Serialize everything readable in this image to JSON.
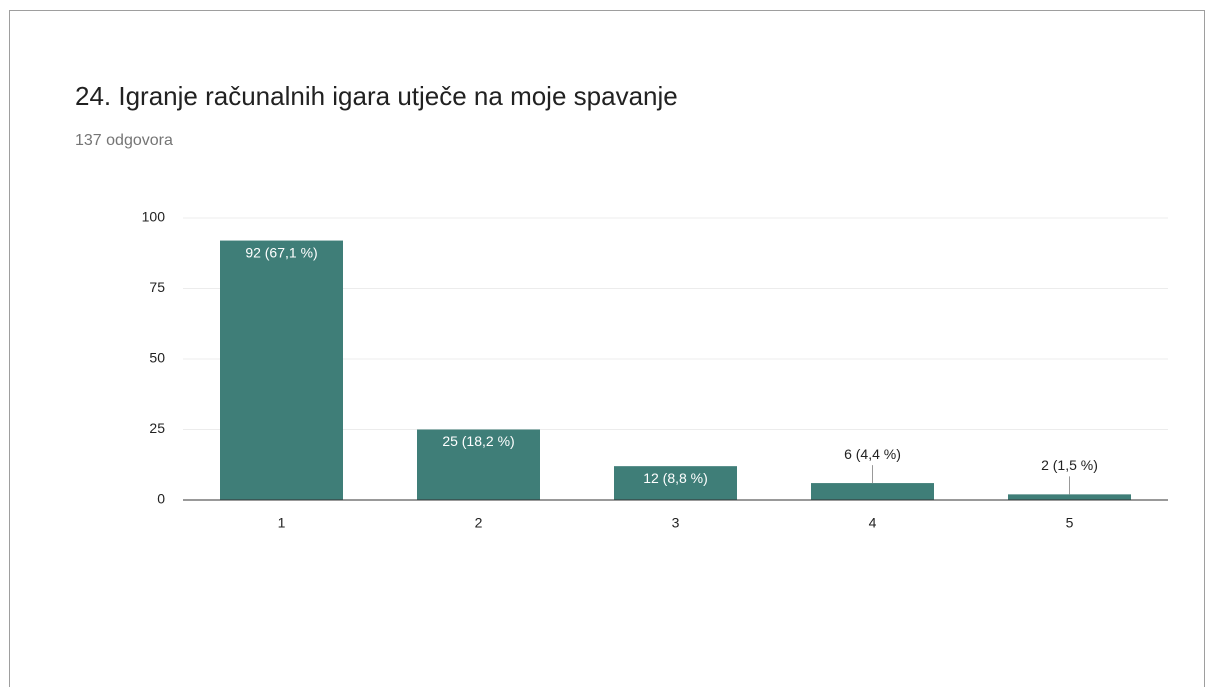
{
  "chart_data": {
    "type": "bar",
    "title": "24. Igranje računalnih igara utječe na moje spavanje",
    "subtitle": "137 odgovora",
    "categories": [
      "1",
      "2",
      "3",
      "4",
      "5"
    ],
    "values": [
      92,
      25,
      12,
      6,
      2
    ],
    "value_labels": [
      "92 (67,1 %)",
      "25 (18,2 %)",
      "12 (8,8 %)",
      "6 (4,4 %)",
      "2 (1,5 %)"
    ],
    "color": "#3f7e78",
    "ylim": [
      0,
      100
    ],
    "yticks": [
      0,
      25,
      50,
      75,
      100
    ],
    "grid": true
  }
}
